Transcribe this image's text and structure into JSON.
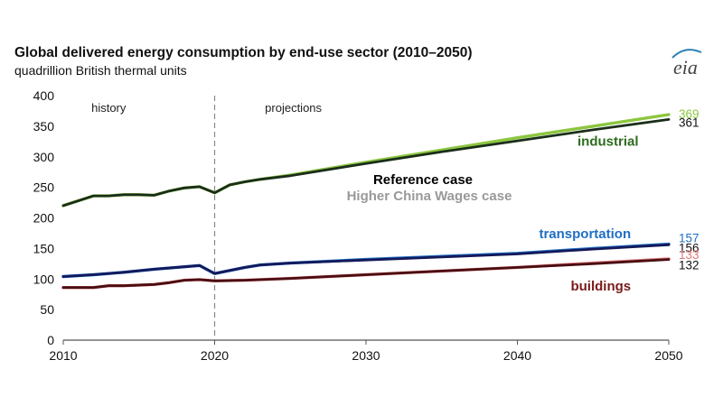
{
  "header": {
    "title": "Global delivered energy consumption by end-use sector (2010–2050)",
    "subtitle": "quadrillion British thermal units",
    "logo": "eia"
  },
  "chart_data": {
    "type": "line",
    "title": "Global delivered energy consumption by end-use sector (2010–2050)",
    "ylabel": "quadrillion British thermal units",
    "xlabel": "",
    "xlim": [
      2010,
      2050
    ],
    "ylim": [
      0,
      400
    ],
    "xticks": [
      2010,
      2020,
      2030,
      2040,
      2050
    ],
    "yticks": [
      0,
      50,
      100,
      150,
      200,
      250,
      300,
      350,
      400
    ],
    "grid": false,
    "divider": {
      "x": 2020,
      "left_label": "history",
      "right_label": "projections"
    },
    "annotations": [
      {
        "text": "Reference case",
        "color": "#000000"
      },
      {
        "text": "Higher China Wages case",
        "color": "#999999"
      }
    ],
    "sector_labels": [
      {
        "text": "industrial",
        "color": "#2e6b1f",
        "x": 2048,
        "y": 318
      },
      {
        "text": "transportation",
        "color": "#1f6fc4",
        "x": 2047.5,
        "y": 167
      },
      {
        "text": "buildings",
        "color": "#7a1a1a",
        "x": 2047.5,
        "y": 81
      }
    ],
    "series": [
      {
        "name": "industrial – Higher China Wages case",
        "color": "#8cc63f",
        "end_label": "369",
        "x": [
          2010,
          2012,
          2013,
          2014,
          2015,
          2016,
          2017,
          2018,
          2019,
          2020,
          2021,
          2022,
          2023,
          2025,
          2030,
          2035,
          2040,
          2045,
          2050
        ],
        "y": [
          220,
          236,
          236,
          238,
          238,
          237,
          244,
          249,
          251,
          241,
          254,
          259,
          263,
          270,
          291,
          311,
          331,
          350,
          369
        ]
      },
      {
        "name": "industrial – Reference case",
        "color": "#1a2e1a",
        "end_label": "361",
        "x": [
          2010,
          2012,
          2013,
          2014,
          2015,
          2016,
          2017,
          2018,
          2019,
          2020,
          2021,
          2022,
          2023,
          2025,
          2030,
          2035,
          2040,
          2045,
          2050
        ],
        "y": [
          220,
          236,
          236,
          238,
          238,
          237,
          244,
          249,
          251,
          241,
          254,
          259,
          263,
          269,
          289,
          308,
          326,
          344,
          361
        ]
      },
      {
        "name": "transportation – Higher China Wages case",
        "color": "#1f6fc4",
        "end_label": "157",
        "x": [
          2010,
          2012,
          2014,
          2016,
          2018,
          2019,
          2020,
          2021,
          2022,
          2023,
          2025,
          2030,
          2035,
          2040,
          2045,
          2050
        ],
        "y": [
          104,
          107,
          111,
          116,
          120,
          122,
          109,
          114,
          119,
          123,
          126,
          132,
          137,
          142,
          150,
          157
        ]
      },
      {
        "name": "transportation – Reference case",
        "color": "#14195a",
        "end_label": "156",
        "x": [
          2010,
          2012,
          2014,
          2016,
          2018,
          2019,
          2020,
          2021,
          2022,
          2023,
          2025,
          2030,
          2035,
          2040,
          2045,
          2050
        ],
        "y": [
          104,
          107,
          111,
          116,
          120,
          122,
          109,
          114,
          119,
          123,
          126,
          131,
          136,
          141,
          149,
          156
        ]
      },
      {
        "name": "buildings – Higher China Wages case",
        "color": "#e0787a",
        "end_label": "133",
        "x": [
          2010,
          2012,
          2013,
          2014,
          2016,
          2017,
          2018,
          2019,
          2020,
          2022,
          2025,
          2030,
          2035,
          2040,
          2045,
          2050
        ],
        "y": [
          86,
          86,
          89,
          89,
          91,
          94,
          98,
          99,
          97,
          98,
          101,
          107,
          113,
          119,
          126,
          133
        ]
      },
      {
        "name": "buildings – Reference case",
        "color": "#4a0e12",
        "end_label": "132",
        "x": [
          2010,
          2012,
          2013,
          2014,
          2016,
          2017,
          2018,
          2019,
          2020,
          2022,
          2025,
          2030,
          2035,
          2040,
          2045,
          2050
        ],
        "y": [
          86,
          86,
          89,
          89,
          91,
          94,
          98,
          99,
          97,
          98,
          101,
          107,
          113,
          119,
          125,
          132
        ]
      }
    ]
  }
}
